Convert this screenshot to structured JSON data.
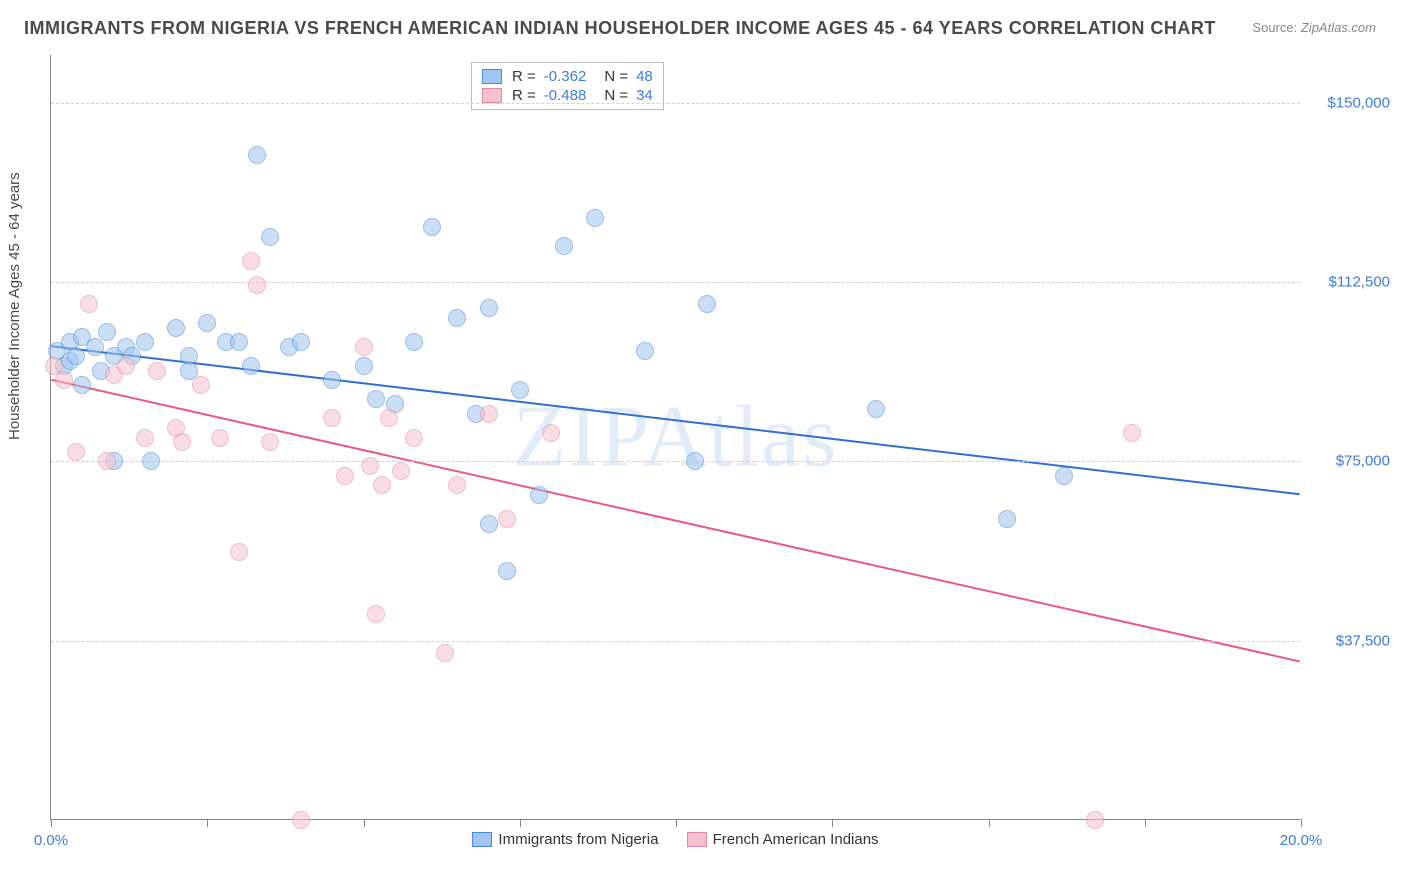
{
  "title": "IMMIGRANTS FROM NIGERIA VS FRENCH AMERICAN INDIAN HOUSEHOLDER INCOME AGES 45 - 64 YEARS CORRELATION CHART",
  "source_label": "Source:",
  "source_value": "ZipAtlas.com",
  "y_axis_label": "Householder Income Ages 45 - 64 years",
  "watermark": "ZIPAtlas",
  "chart": {
    "type": "scatter",
    "background_color": "#ffffff",
    "grid_color": "#d0d0d0",
    "axis_color": "#888888",
    "tick_label_color": "#3b7dd8",
    "xlim": [
      0,
      20
    ],
    "ylim": [
      0,
      160000
    ],
    "x_ticks": [
      0,
      2.5,
      5,
      7.5,
      10,
      12.5,
      15,
      17.5,
      20
    ],
    "x_tick_labels": {
      "0": "0.0%",
      "20": "20.0%"
    },
    "y_gridlines": [
      37500,
      75000,
      112500,
      150000
    ],
    "y_tick_labels": {
      "37500": "$37,500",
      "75000": "$75,000",
      "112500": "$112,500",
      "150000": "$150,000"
    },
    "point_radius": 9,
    "point_opacity": 0.55,
    "line_width": 2,
    "series": [
      {
        "name": "Immigrants from Nigeria",
        "fill_color": "#9fc5f0",
        "stroke_color": "#4a8ad4",
        "line_color": "#2e6fd0",
        "R": "-0.362",
        "N": "48",
        "trend": {
          "x1": 0,
          "y1": 99000,
          "x2": 20,
          "y2": 68000
        },
        "points": [
          [
            0.1,
            98000
          ],
          [
            0.2,
            95000
          ],
          [
            0.3,
            100000
          ],
          [
            0.3,
            96000
          ],
          [
            0.4,
            97000
          ],
          [
            0.5,
            91000
          ],
          [
            0.5,
            101000
          ],
          [
            0.7,
            99000
          ],
          [
            0.8,
            94000
          ],
          [
            0.9,
            102000
          ],
          [
            1.0,
            97000
          ],
          [
            1.0,
            75000
          ],
          [
            1.2,
            99000
          ],
          [
            1.3,
            97000
          ],
          [
            1.5,
            100000
          ],
          [
            1.6,
            75000
          ],
          [
            2.0,
            103000
          ],
          [
            2.2,
            97000
          ],
          [
            2.2,
            94000
          ],
          [
            2.5,
            104000
          ],
          [
            2.8,
            100000
          ],
          [
            3.0,
            100000
          ],
          [
            3.2,
            95000
          ],
          [
            3.3,
            139000
          ],
          [
            3.5,
            122000
          ],
          [
            3.8,
            99000
          ],
          [
            4.0,
            100000
          ],
          [
            4.5,
            92000
          ],
          [
            5.0,
            95000
          ],
          [
            5.2,
            88000
          ],
          [
            5.5,
            87000
          ],
          [
            5.8,
            100000
          ],
          [
            6.1,
            124000
          ],
          [
            6.5,
            105000
          ],
          [
            6.8,
            85000
          ],
          [
            7.0,
            107000
          ],
          [
            7.0,
            62000
          ],
          [
            7.3,
            52000
          ],
          [
            7.5,
            90000
          ],
          [
            7.8,
            68000
          ],
          [
            8.2,
            120000
          ],
          [
            8.7,
            126000
          ],
          [
            9.5,
            98000
          ],
          [
            10.3,
            75000
          ],
          [
            10.5,
            108000
          ],
          [
            13.2,
            86000
          ],
          [
            15.3,
            63000
          ],
          [
            16.2,
            72000
          ]
        ]
      },
      {
        "name": "French American Indians",
        "fill_color": "#f5c1cf",
        "stroke_color": "#e08aa0",
        "line_color": "#e85a7f",
        "R": "-0.488",
        "N": "34",
        "trend": {
          "x1": 0,
          "y1": 92000,
          "x2": 20,
          "y2": 33000
        },
        "points": [
          [
            0.05,
            95000
          ],
          [
            0.2,
            92000
          ],
          [
            0.4,
            77000
          ],
          [
            0.6,
            108000
          ],
          [
            0.9,
            75000
          ],
          [
            1.0,
            93000
          ],
          [
            1.2,
            95000
          ],
          [
            1.5,
            80000
          ],
          [
            1.7,
            94000
          ],
          [
            2.0,
            82000
          ],
          [
            2.1,
            79000
          ],
          [
            2.4,
            91000
          ],
          [
            2.7,
            80000
          ],
          [
            3.0,
            56000
          ],
          [
            3.2,
            117000
          ],
          [
            3.3,
            112000
          ],
          [
            3.5,
            79000
          ],
          [
            4.0,
            0
          ],
          [
            4.5,
            84000
          ],
          [
            4.7,
            72000
          ],
          [
            5.0,
            99000
          ],
          [
            5.1,
            74000
          ],
          [
            5.2,
            43000
          ],
          [
            5.3,
            70000
          ],
          [
            5.4,
            84000
          ],
          [
            5.6,
            73000
          ],
          [
            5.8,
            80000
          ],
          [
            6.3,
            35000
          ],
          [
            6.5,
            70000
          ],
          [
            7.0,
            85000
          ],
          [
            7.3,
            63000
          ],
          [
            8.0,
            81000
          ],
          [
            16.7,
            0
          ],
          [
            17.3,
            81000
          ]
        ]
      }
    ]
  },
  "legend_bottom": {
    "series1_label": "Immigrants from Nigeria",
    "series2_label": "French American Indians"
  }
}
